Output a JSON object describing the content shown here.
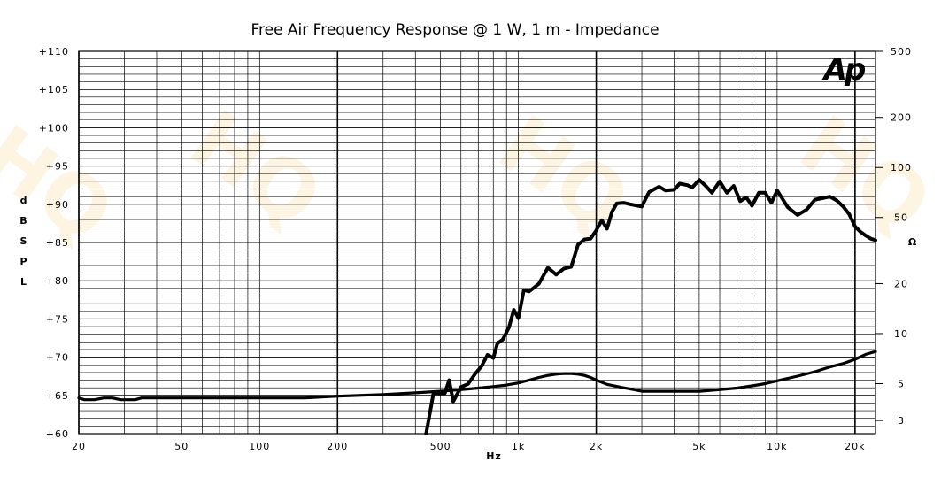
{
  "chart_data": {
    "type": "line",
    "title": "Free Air Frequency Response @ 1 W, 1 m - Impedance",
    "xlabel": "Hz",
    "ylabel_letters": [
      "d",
      "B",
      "S",
      "P",
      "L"
    ],
    "y2label": "Ω",
    "logo": "Ap",
    "x_scale": "log",
    "xlim": [
      20,
      24000
    ],
    "ylim": [
      60,
      110
    ],
    "y2lim": [
      2.5,
      500
    ],
    "y2_scale": "log",
    "grid": true,
    "x_ticks": [
      {
        "value": 20,
        "label": "20"
      },
      {
        "value": 50,
        "label": "50"
      },
      {
        "value": 100,
        "label": "100"
      },
      {
        "value": 200,
        "label": "200"
      },
      {
        "value": 500,
        "label": "500"
      },
      {
        "value": 1000,
        "label": "1k"
      },
      {
        "value": 2000,
        "label": "2k"
      },
      {
        "value": 5000,
        "label": "5k"
      },
      {
        "value": 10000,
        "label": "10k"
      },
      {
        "value": 20000,
        "label": "20k"
      }
    ],
    "y_ticks": [
      {
        "value": 110,
        "label": "+110"
      },
      {
        "value": 105,
        "label": "+105"
      },
      {
        "value": 100,
        "label": "+100"
      },
      {
        "value": 95,
        "label": "+95"
      },
      {
        "value": 90,
        "label": "+90"
      },
      {
        "value": 85,
        "label": "+85"
      },
      {
        "value": 80,
        "label": "+80"
      },
      {
        "value": 75,
        "label": "+75"
      },
      {
        "value": 70,
        "label": "+70"
      },
      {
        "value": 65,
        "label": "+65"
      },
      {
        "value": 60,
        "label": "+60"
      }
    ],
    "y2_ticks": [
      {
        "value": 500,
        "label": "500"
      },
      {
        "value": 200,
        "label": "200"
      },
      {
        "value": 100,
        "label": "100"
      },
      {
        "value": 50,
        "label": "50"
      },
      {
        "value": 20,
        "label": "20"
      },
      {
        "value": 10,
        "label": "10"
      },
      {
        "value": 5,
        "label": "5"
      },
      {
        "value": 3,
        "label": "3"
      }
    ],
    "series": [
      {
        "axis": "y",
        "x": [
          440,
          470,
          500,
          520,
          540,
          560,
          600,
          640,
          680,
          720,
          760,
          800,
          830,
          870,
          920,
          960,
          1000,
          1050,
          1100,
          1200,
          1300,
          1400,
          1500,
          1600,
          1700,
          1800,
          1900,
          2000,
          2100,
          2200,
          2300,
          2400,
          2550,
          2700,
          3000,
          3200,
          3500,
          3700,
          4000,
          4200,
          4500,
          4700,
          5000,
          5300,
          5600,
          6000,
          6400,
          6800,
          7200,
          7600,
          8000,
          8500,
          9000,
          9500,
          10000,
          11000,
          12000,
          13000,
          14000,
          15000,
          16000,
          17000,
          18000,
          19000,
          20000,
          21000,
          22000,
          23000,
          24000
        ],
        "values": [
          60,
          65.3,
          65.3,
          65.3,
          67,
          64.2,
          66.1,
          66.5,
          67.8,
          68.8,
          70.3,
          69.9,
          71.8,
          72.3,
          73.9,
          76.2,
          75.1,
          78.8,
          78.6,
          79.6,
          81.7,
          80.8,
          81.6,
          81.8,
          84.7,
          85.4,
          85.5,
          86.6,
          87.9,
          86.8,
          89,
          90.1,
          90.2,
          90,
          89.7,
          91.6,
          92.3,
          91.8,
          91.9,
          92.7,
          92.5,
          92.2,
          93.2,
          92.4,
          91.5,
          93,
          91.5,
          92.4,
          90.4,
          90.9,
          89.8,
          91.5,
          91.5,
          90.2,
          91.8,
          89.6,
          88.6,
          89.3,
          90.6,
          90.8,
          91,
          90.5,
          89.7,
          88.7,
          87.1,
          86.4,
          85.9,
          85.5,
          85.3
        ]
      },
      {
        "axis": "y2",
        "x": [
          20,
          21,
          23,
          25,
          27,
          29,
          31,
          33,
          35,
          40,
          50,
          70,
          100,
          150,
          200,
          300,
          400,
          500,
          600,
          700,
          800,
          900,
          1000,
          1100,
          1200,
          1300,
          1400,
          1500,
          1600,
          1700,
          1800,
          1900,
          2000,
          2200,
          2500,
          2800,
          3000,
          3500,
          4000,
          5000,
          6000,
          7000,
          8000,
          9000,
          10000,
          12000,
          14000,
          16000,
          18000,
          20000,
          22000,
          24000
        ],
        "values": [
          4.1,
          4,
          4,
          4.1,
          4.1,
          4,
          4,
          4,
          4.1,
          4.1,
          4.1,
          4.1,
          4.1,
          4.1,
          4.2,
          4.3,
          4.4,
          4.5,
          4.6,
          4.7,
          4.8,
          4.9,
          5.05,
          5.25,
          5.45,
          5.6,
          5.7,
          5.75,
          5.75,
          5.7,
          5.6,
          5.45,
          5.25,
          4.95,
          4.75,
          4.6,
          4.5,
          4.5,
          4.5,
          4.5,
          4.6,
          4.7,
          4.85,
          5,
          5.2,
          5.55,
          5.9,
          6.3,
          6.6,
          7,
          7.5,
          7.8
        ]
      }
    ]
  }
}
